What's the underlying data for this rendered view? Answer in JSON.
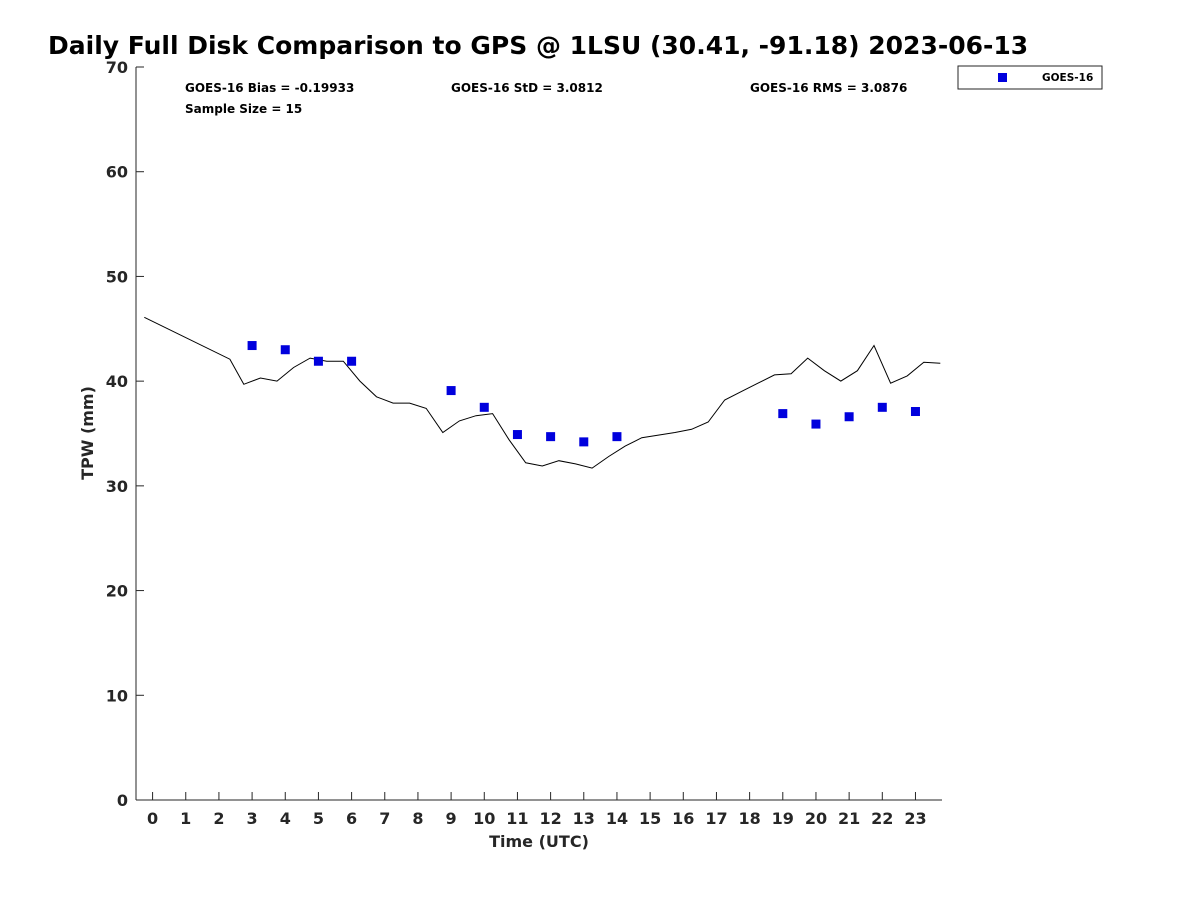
{
  "chart_data": {
    "type": "scatter",
    "title": "Daily Full Disk Comparison to GPS @ 1LSU (30.41, -91.18) 2023-06-13",
    "xlabel": "Time (UTC)",
    "ylabel": "TPW (mm)",
    "xlim": [
      -0.5,
      23.8
    ],
    "ylim": [
      0,
      70
    ],
    "x_ticks": [
      0,
      1,
      2,
      3,
      4,
      5,
      6,
      7,
      8,
      9,
      10,
      11,
      12,
      13,
      14,
      15,
      16,
      17,
      18,
      19,
      20,
      21,
      22,
      23
    ],
    "y_ticks": [
      0,
      10,
      20,
      30,
      40,
      50,
      60,
      70
    ],
    "grid": false,
    "legend": {
      "position": "top-right (outside plot)",
      "entries": [
        "GOES-16"
      ]
    },
    "stats": {
      "bias": "GOES-16 Bias = -0.19933",
      "std": "GOES-16 StD = 3.0812",
      "rms": "GOES-16 RMS = 3.0876",
      "sample": "Sample Size = 15"
    },
    "series": [
      {
        "name": "GOES-16",
        "style": "markers",
        "marker": "square",
        "color": "#0000dd",
        "x": [
          3,
          4,
          5,
          6,
          9,
          10,
          11,
          12,
          13,
          14,
          19,
          20,
          21,
          22,
          23
        ],
        "y": [
          43.4,
          43.0,
          41.9,
          41.9,
          39.1,
          37.5,
          34.9,
          34.7,
          34.2,
          34.7,
          36.9,
          35.9,
          36.6,
          37.5,
          37.1
        ]
      },
      {
        "style": "line",
        "color": "#000000",
        "x": [
          -0.25,
          2.33,
          2.75,
          3.25,
          3.75,
          4.25,
          4.75,
          5.25,
          5.75,
          6.25,
          6.75,
          7.25,
          7.75,
          8.25,
          8.75,
          9.25,
          9.75,
          10.25,
          10.75,
          11.25,
          11.75,
          12.25,
          12.75,
          13.25,
          13.75,
          14.25,
          14.75,
          15.75,
          16.25,
          16.75,
          17.25,
          17.75,
          18.25,
          18.75,
          19.25,
          19.75,
          20.25,
          20.75,
          21.25,
          21.75,
          22.25,
          22.75,
          23.25,
          23.75
        ],
        "y": [
          46.1,
          42.1,
          39.7,
          40.3,
          40.0,
          41.3,
          42.2,
          41.9,
          41.9,
          40.0,
          38.5,
          37.9,
          37.9,
          37.4,
          35.1,
          36.2,
          36.7,
          36.9,
          34.4,
          32.2,
          31.9,
          32.4,
          32.1,
          31.7,
          32.8,
          33.8,
          34.6,
          35.1,
          35.4,
          36.1,
          38.2,
          39.0,
          39.8,
          40.6,
          40.7,
          42.2,
          41.0,
          40.0,
          41.0,
          43.4,
          39.8,
          40.5,
          41.8,
          41.7
        ]
      }
    ]
  }
}
